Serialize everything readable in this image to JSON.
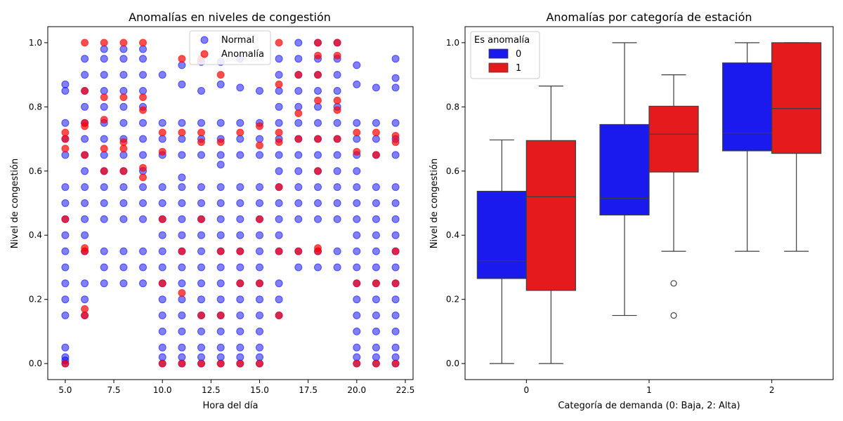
{
  "chart_data": [
    {
      "type": "scatter",
      "title": "Anomalías en niveles de congestión",
      "xlabel": "Hora del día",
      "ylabel": "Nivel de congestión",
      "xlim": [
        4.1,
        22.9
      ],
      "ylim": [
        -0.05,
        1.05
      ],
      "xticks": [
        "5.0",
        "7.5",
        "10.0",
        "12.5",
        "15.0",
        "17.5",
        "20.0",
        "22.5"
      ],
      "xtick_values": [
        5,
        7.5,
        10,
        12.5,
        15,
        17.5,
        20,
        22.5
      ],
      "yticks": [
        "0.0",
        "0.2",
        "0.4",
        "0.6",
        "0.8",
        "1.0"
      ],
      "ytick_values": [
        0,
        0.2,
        0.4,
        0.6,
        0.8,
        1.0
      ],
      "grid": false,
      "legend_position": "top-center",
      "series": [
        {
          "name": "Normal",
          "color": "#0000ff",
          "points_by_hour": {
            "5": [
              0.0,
              0.01,
              0.02,
              0.05,
              0.15,
              0.2,
              0.25,
              0.3,
              0.35,
              0.4,
              0.45,
              0.5,
              0.55,
              0.65,
              0.7,
              0.75,
              0.85,
              0.87
            ],
            "6": [
              0.15,
              0.2,
              0.25,
              0.35,
              0.4,
              0.45,
              0.5,
              0.55,
              0.6,
              0.65,
              0.7,
              0.75,
              0.8,
              0.85,
              0.9,
              0.95
            ],
            "7": [
              0.25,
              0.3,
              0.35,
              0.45,
              0.5,
              0.55,
              0.6,
              0.65,
              0.7,
              0.75,
              0.8,
              0.85,
              0.9,
              0.95,
              0.98
            ],
            "8": [
              0.25,
              0.3,
              0.35,
              0.45,
              0.5,
              0.55,
              0.6,
              0.65,
              0.7,
              0.75,
              0.8,
              0.85,
              0.9,
              0.95,
              0.98
            ],
            "9": [
              0.25,
              0.3,
              0.35,
              0.45,
              0.5,
              0.55,
              0.6,
              0.65,
              0.7,
              0.75,
              0.8,
              0.85,
              0.9,
              0.95,
              0.98
            ],
            "10": [
              0.0,
              0.02,
              0.05,
              0.1,
              0.15,
              0.2,
              0.25,
              0.3,
              0.35,
              0.4,
              0.45,
              0.5,
              0.55,
              0.65,
              0.7,
              0.75,
              0.9
            ],
            "11": [
              0.0,
              0.02,
              0.05,
              0.1,
              0.15,
              0.2,
              0.25,
              0.3,
              0.35,
              0.4,
              0.45,
              0.5,
              0.55,
              0.58,
              0.65,
              0.7,
              0.75,
              0.87,
              0.93
            ],
            "12": [
              0.0,
              0.02,
              0.05,
              0.1,
              0.15,
              0.2,
              0.25,
              0.3,
              0.35,
              0.4,
              0.45,
              0.5,
              0.55,
              0.65,
              0.7,
              0.75,
              0.85,
              0.94
            ],
            "13": [
              0.0,
              0.02,
              0.05,
              0.1,
              0.15,
              0.2,
              0.25,
              0.3,
              0.35,
              0.4,
              0.45,
              0.5,
              0.55,
              0.62,
              0.65,
              0.7,
              0.75,
              0.87,
              0.94
            ],
            "14": [
              0.0,
              0.02,
              0.05,
              0.1,
              0.15,
              0.2,
              0.25,
              0.3,
              0.35,
              0.4,
              0.45,
              0.5,
              0.55,
              0.65,
              0.7,
              0.75,
              0.86,
              0.95
            ],
            "15": [
              0.0,
              0.02,
              0.05,
              0.1,
              0.15,
              0.2,
              0.25,
              0.3,
              0.35,
              0.4,
              0.45,
              0.5,
              0.55,
              0.65,
              0.7,
              0.75,
              0.85
            ],
            "16": [
              0.15,
              0.2,
              0.25,
              0.35,
              0.4,
              0.45,
              0.5,
              0.55,
              0.6,
              0.65,
              0.7,
              0.75,
              0.8,
              0.85,
              0.9,
              0.95
            ],
            "17": [
              0.3,
              0.35,
              0.45,
              0.5,
              0.55,
              0.6,
              0.65,
              0.7,
              0.75,
              0.8,
              0.85,
              0.9,
              0.95,
              1.0
            ],
            "18": [
              0.3,
              0.35,
              0.45,
              0.5,
              0.55,
              0.6,
              0.65,
              0.7,
              0.75,
              0.8,
              0.85,
              0.9,
              0.95,
              1.0
            ],
            "19": [
              0.3,
              0.35,
              0.45,
              0.5,
              0.55,
              0.6,
              0.65,
              0.7,
              0.75,
              0.8,
              0.85,
              0.9,
              0.95,
              1.0
            ],
            "20": [
              0.0,
              0.02,
              0.05,
              0.1,
              0.15,
              0.2,
              0.25,
              0.3,
              0.35,
              0.4,
              0.45,
              0.5,
              0.55,
              0.6,
              0.65,
              0.7,
              0.75,
              0.87,
              0.93
            ],
            "21": [
              0.0,
              0.02,
              0.05,
              0.1,
              0.15,
              0.2,
              0.25,
              0.3,
              0.35,
              0.4,
              0.45,
              0.5,
              0.55,
              0.65,
              0.7,
              0.75,
              0.86
            ],
            "22": [
              0.0,
              0.02,
              0.05,
              0.1,
              0.15,
              0.2,
              0.25,
              0.3,
              0.35,
              0.4,
              0.45,
              0.5,
              0.55,
              0.65,
              0.7,
              0.75,
              0.86,
              0.89,
              0.95
            ]
          }
        },
        {
          "name": "Anomalía",
          "color": "#ff0000",
          "points_by_hour": {
            "5": [
              0.0,
              0.45,
              0.67,
              0.7,
              0.72
            ],
            "6": [
              0.15,
              0.17,
              0.35,
              0.36,
              0.65,
              0.74,
              0.75,
              0.85,
              1.0
            ],
            "7": [
              0.6,
              0.67,
              0.76,
              0.83,
              1.0
            ],
            "8": [
              0.6,
              0.67,
              0.69,
              0.83,
              1.0
            ],
            "9": [
              0.58,
              0.61,
              0.79,
              0.83,
              1.0
            ],
            "10": [
              0.0,
              0.25,
              0.45,
              0.66,
              0.72
            ],
            "11": [
              0.0,
              0.22,
              0.35,
              0.72,
              0.95
            ],
            "12": [
              0.0,
              0.15,
              0.45,
              0.69,
              0.72,
              0.95
            ],
            "13": [
              0.0,
              0.15,
              0.35,
              0.69,
              0.9
            ],
            "14": [
              0.0,
              0.25,
              0.35,
              0.72
            ],
            "15": [
              0.0,
              0.25,
              0.45,
              0.68,
              0.74
            ],
            "16": [
              0.15,
              0.35,
              0.55,
              0.69,
              0.72,
              0.87,
              1.0
            ],
            "17": [
              0.35,
              0.7,
              0.78,
              0.9
            ],
            "18": [
              0.35,
              0.36,
              0.6,
              0.7,
              0.82,
              0.9,
              0.96,
              1.0
            ],
            "19": [
              0.7,
              0.79,
              0.82,
              0.96,
              1.0
            ],
            "20": [
              0.0,
              0.25,
              0.66,
              0.72
            ],
            "21": [
              0.0,
              0.25,
              0.65,
              0.72
            ],
            "22": [
              0.0,
              0.25,
              0.35,
              0.69,
              0.71
            ]
          }
        }
      ]
    },
    {
      "type": "box",
      "title": "Anomalías por categoría de estación",
      "xlabel": "Categoría de demanda (0: Baja, 2: Alta)",
      "ylabel": "Nivel de congestión",
      "categories": [
        "0",
        "1",
        "2"
      ],
      "ylim": [
        -0.05,
        1.05
      ],
      "yticks": [
        "0.0",
        "0.2",
        "0.4",
        "0.6",
        "0.8",
        "1.0"
      ],
      "ytick_values": [
        0,
        0.2,
        0.4,
        0.6,
        0.8,
        1.0
      ],
      "grid": false,
      "legend_title": "Es anomalía",
      "legend_position": "top-left",
      "series": [
        {
          "name": "0",
          "color": "#1a1aee",
          "boxes": [
            {
              "whislo": 0.0,
              "q1": 0.265,
              "med": 0.32,
              "q3": 0.537,
              "whishi": 0.697,
              "fliers": []
            },
            {
              "whislo": 0.15,
              "q1": 0.463,
              "med": 0.515,
              "q3": 0.745,
              "whishi": 1.0,
              "fliers": []
            },
            {
              "whislo": 0.35,
              "q1": 0.663,
              "med": 0.718,
              "q3": 0.937,
              "whishi": 1.0,
              "fliers": []
            }
          ]
        },
        {
          "name": "1",
          "color": "#e41a1c",
          "boxes": [
            {
              "whislo": 0.0,
              "q1": 0.228,
              "med": 0.52,
              "q3": 0.695,
              "whishi": 0.865,
              "fliers": []
            },
            {
              "whislo": 0.35,
              "q1": 0.597,
              "med": 0.715,
              "q3": 0.802,
              "whishi": 0.9,
              "fliers": [
                0.25,
                0.15
              ]
            },
            {
              "whislo": 0.35,
              "q1": 0.655,
              "med": 0.795,
              "q3": 1.0,
              "whishi": 1.0,
              "fliers": []
            }
          ]
        }
      ]
    }
  ]
}
